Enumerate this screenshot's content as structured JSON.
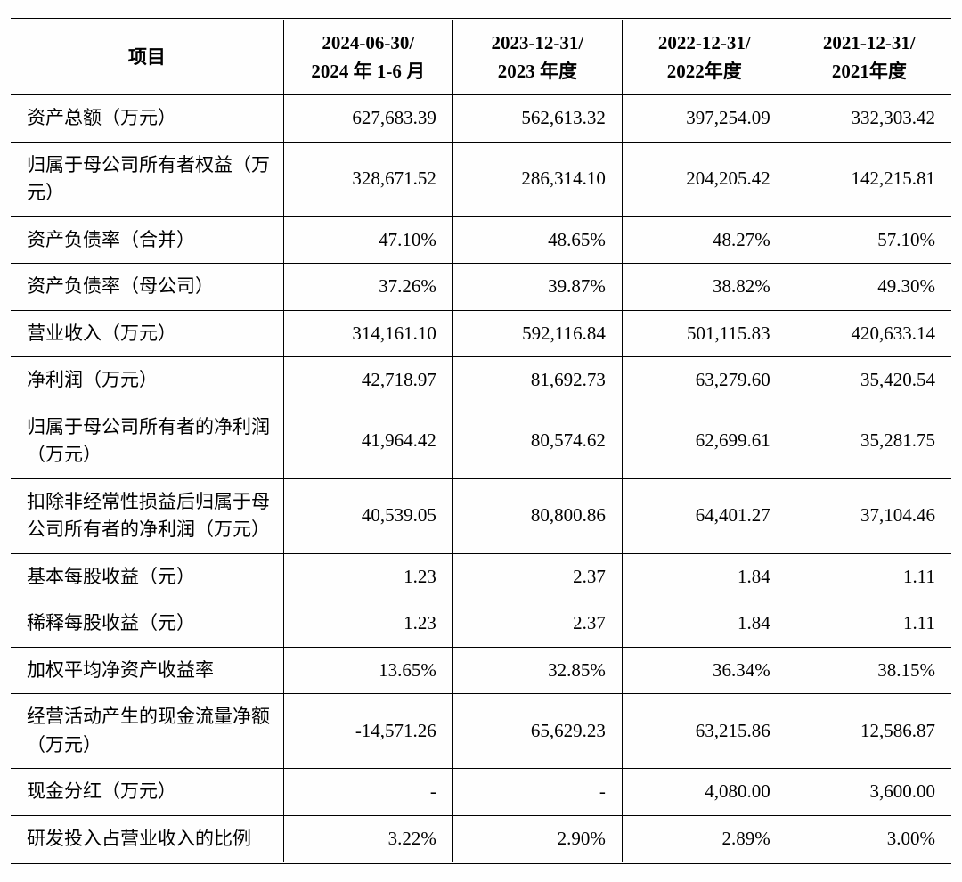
{
  "table": {
    "columns": [
      {
        "line1": "项目",
        "line2": ""
      },
      {
        "line1": "2024-06-30/",
        "line2": "2024 年 1-6 月"
      },
      {
        "line1": "2023-12-31/",
        "line2": "2023 年度"
      },
      {
        "line1": "2022-12-31/",
        "line2": "2022年度"
      },
      {
        "line1": "2021-12-31/",
        "line2": "2021年度"
      }
    ],
    "rows": [
      {
        "label": "资产总额（万元）",
        "v": [
          "627,683.39",
          "562,613.32",
          "397,254.09",
          "332,303.42"
        ]
      },
      {
        "label": "归属于母公司所有者权益（万元）",
        "v": [
          "328,671.52",
          "286,314.10",
          "204,205.42",
          "142,215.81"
        ]
      },
      {
        "label": "资产负债率（合并）",
        "v": [
          "47.10%",
          "48.65%",
          "48.27%",
          "57.10%"
        ]
      },
      {
        "label": "资产负债率（母公司）",
        "v": [
          "37.26%",
          "39.87%",
          "38.82%",
          "49.30%"
        ]
      },
      {
        "label": "营业收入（万元）",
        "v": [
          "314,161.10",
          "592,116.84",
          "501,115.83",
          "420,633.14"
        ]
      },
      {
        "label": "净利润（万元）",
        "v": [
          "42,718.97",
          "81,692.73",
          "63,279.60",
          "35,420.54"
        ]
      },
      {
        "label": "归属于母公司所有者的净利润（万元）",
        "v": [
          "41,964.42",
          "80,574.62",
          "62,699.61",
          "35,281.75"
        ]
      },
      {
        "label": "扣除非经常性损益后归属于母公司所有者的净利润（万元）",
        "v": [
          "40,539.05",
          "80,800.86",
          "64,401.27",
          "37,104.46"
        ]
      },
      {
        "label": "基本每股收益（元）",
        "v": [
          "1.23",
          "2.37",
          "1.84",
          "1.11"
        ]
      },
      {
        "label": "稀释每股收益（元）",
        "v": [
          "1.23",
          "2.37",
          "1.84",
          "1.11"
        ]
      },
      {
        "label": "加权平均净资产收益率",
        "v": [
          "13.65%",
          "32.85%",
          "36.34%",
          "38.15%"
        ]
      },
      {
        "label": "经营活动产生的现金流量净额（万元）",
        "v": [
          "-14,571.26",
          "65,629.23",
          "63,215.86",
          "12,586.87"
        ]
      },
      {
        "label": "现金分红（万元）",
        "v": [
          "-",
          "-",
          "4,080.00",
          "3,600.00"
        ]
      },
      {
        "label": "研发投入占营业收入的比例",
        "v": [
          "3.22%",
          "2.90%",
          "2.89%",
          "3.00%"
        ]
      }
    ]
  }
}
